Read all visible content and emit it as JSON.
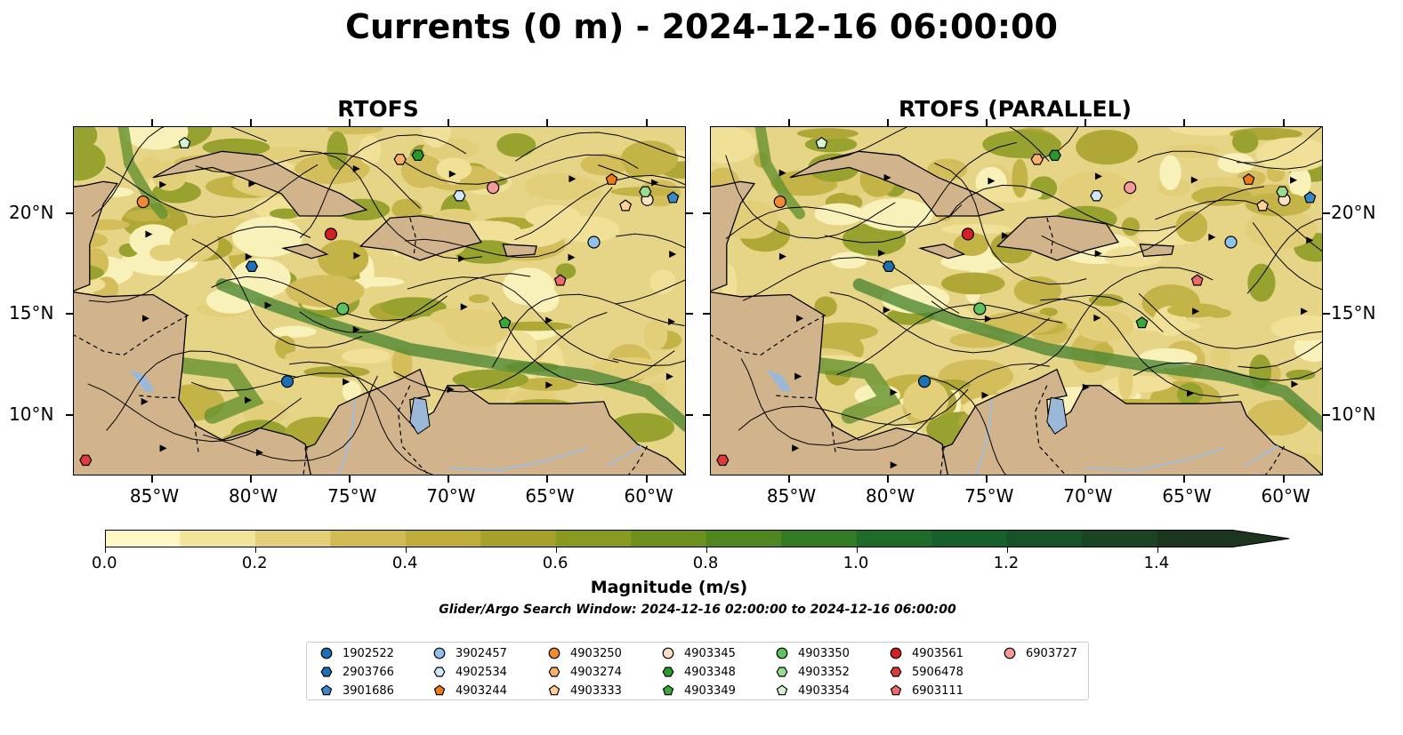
{
  "figure": {
    "title": "Currents (0 m) - 2024-12-16 06:00:00",
    "subtitle": "Glider/Argo Search Window: 2024-12-16 02:00:00 to 2024-12-16 06:00:00"
  },
  "panels": [
    {
      "title": "RTOFS"
    },
    {
      "title": "RTOFS (PARALLEL)"
    }
  ],
  "axes": {
    "x_ticks": [
      "85°W",
      "80°W",
      "75°W",
      "70°W",
      "65°W",
      "60°W"
    ],
    "x_values": [
      -85,
      -80,
      -75,
      -70,
      -65,
      -60
    ],
    "y_ticks": [
      "20°N",
      "15°N",
      "10°N"
    ],
    "y_values": [
      20,
      15,
      10
    ],
    "lon_range": [
      -89,
      -58
    ],
    "lat_range": [
      7,
      24.3
    ]
  },
  "colorbar": {
    "label": "Magnitude (m/s)",
    "ticks": [
      "0.0",
      "0.2",
      "0.4",
      "0.6",
      "0.8",
      "1.0",
      "1.2",
      "1.4"
    ],
    "tick_values": [
      0.0,
      0.2,
      0.4,
      0.6,
      0.8,
      1.0,
      1.2,
      1.4
    ],
    "range": [
      0,
      1.5
    ],
    "extend": "max",
    "colors": [
      "#fdf7c4",
      "#f3e49b",
      "#e3cf78",
      "#d1bb55",
      "#bfae3c",
      "#a6a12a",
      "#8a9a20",
      "#6c8f1d",
      "#4f861f",
      "#347b25",
      "#1e6c2a",
      "#17602c",
      "#175229",
      "#1b4424",
      "#1c351e"
    ]
  },
  "map_colors": {
    "land": "#d1b48c",
    "lake": "#9bb8d8",
    "river": "#a6bdd9",
    "ocean_base": "#e6d587"
  },
  "legend": [
    {
      "id": "1902522",
      "color": "#1f6fb4",
      "shape": "circle"
    },
    {
      "id": "2903766",
      "color": "#1f6fb4",
      "shape": "hexagon"
    },
    {
      "id": "3901686",
      "color": "#3a88c8",
      "shape": "pentagon"
    },
    {
      "id": "3902457",
      "color": "#8fc2ea",
      "shape": "circle"
    },
    {
      "id": "4902534",
      "color": "#cfe8fa",
      "shape": "hexagon"
    },
    {
      "id": "4903244",
      "color": "#f07b12",
      "shape": "pentagon"
    },
    {
      "id": "4903250",
      "color": "#f28b30",
      "shape": "circle"
    },
    {
      "id": "4903274",
      "color": "#fbb06b",
      "shape": "hexagon"
    },
    {
      "id": "4903333",
      "color": "#fdd09a",
      "shape": "pentagon"
    },
    {
      "id": "4903345",
      "color": "#fce0c6",
      "shape": "circle"
    },
    {
      "id": "4903348",
      "color": "#2a9b2a",
      "shape": "hexagon"
    },
    {
      "id": "4903349",
      "color": "#3aa83a",
      "shape": "pentagon"
    },
    {
      "id": "4903350",
      "color": "#5ec25e",
      "shape": "circle"
    },
    {
      "id": "4903352",
      "color": "#98dd8f",
      "shape": "hexagon"
    },
    {
      "id": "4903354",
      "color": "#d4f5cd",
      "shape": "pentagon"
    },
    {
      "id": "4903561",
      "color": "#d42020",
      "shape": "circle"
    },
    {
      "id": "5906478",
      "color": "#e03a3a",
      "shape": "hexagon"
    },
    {
      "id": "6903111",
      "color": "#ee6a6a",
      "shape": "pentagon"
    },
    {
      "id": "6903727",
      "color": "#f79a9a",
      "shape": "circle"
    }
  ],
  "markers": [
    {
      "panel": 0,
      "id": "1902522",
      "lon": -78.2,
      "lat": 11.7
    },
    {
      "panel": 0,
      "id": "2903766",
      "lon": -80.0,
      "lat": 17.4
    },
    {
      "panel": 0,
      "id": "3901686",
      "lon": -58.7,
      "lat": 20.8
    },
    {
      "panel": 0,
      "id": "3902457",
      "lon": -62.7,
      "lat": 18.6
    },
    {
      "panel": 0,
      "id": "4902534",
      "lon": -69.5,
      "lat": 20.9
    },
    {
      "panel": 0,
      "id": "4903244",
      "lon": -61.8,
      "lat": 21.7
    },
    {
      "panel": 0,
      "id": "4903250",
      "lon": -85.5,
      "lat": 20.6
    },
    {
      "panel": 0,
      "id": "4903274",
      "lon": -72.5,
      "lat": 22.7
    },
    {
      "panel": 0,
      "id": "4903333",
      "lon": -61.1,
      "lat": 20.4
    },
    {
      "panel": 0,
      "id": "4903345",
      "lon": -60.0,
      "lat": 20.7
    },
    {
      "panel": 0,
      "id": "4903348",
      "lon": -71.6,
      "lat": 22.9
    },
    {
      "panel": 0,
      "id": "4903349",
      "lon": -67.2,
      "lat": 14.6
    },
    {
      "panel": 0,
      "id": "4903350",
      "lon": -75.4,
      "lat": 15.3
    },
    {
      "panel": 0,
      "id": "4903352",
      "lon": -60.1,
      "lat": 21.1
    },
    {
      "panel": 0,
      "id": "4903354",
      "lon": -83.4,
      "lat": 23.5
    },
    {
      "panel": 0,
      "id": "4903561",
      "lon": -76.0,
      "lat": 19.0
    },
    {
      "panel": 0,
      "id": "5906478",
      "lon": -88.4,
      "lat": 7.8
    },
    {
      "panel": 0,
      "id": "6903111",
      "lon": -64.4,
      "lat": 16.7
    },
    {
      "panel": 0,
      "id": "6903727",
      "lon": -67.8,
      "lat": 21.3
    },
    {
      "panel": 1,
      "id": "1902522",
      "lon": -78.2,
      "lat": 11.7
    },
    {
      "panel": 1,
      "id": "2903766",
      "lon": -80.0,
      "lat": 17.4
    },
    {
      "panel": 1,
      "id": "3901686",
      "lon": -58.7,
      "lat": 20.8
    },
    {
      "panel": 1,
      "id": "3902457",
      "lon": -62.7,
      "lat": 18.6
    },
    {
      "panel": 1,
      "id": "4902534",
      "lon": -69.5,
      "lat": 20.9
    },
    {
      "panel": 1,
      "id": "4903244",
      "lon": -61.8,
      "lat": 21.7
    },
    {
      "panel": 1,
      "id": "4903250",
      "lon": -85.5,
      "lat": 20.6
    },
    {
      "panel": 1,
      "id": "4903274",
      "lon": -72.5,
      "lat": 22.7
    },
    {
      "panel": 1,
      "id": "4903333",
      "lon": -61.1,
      "lat": 20.4
    },
    {
      "panel": 1,
      "id": "4903345",
      "lon": -60.0,
      "lat": 20.7
    },
    {
      "panel": 1,
      "id": "4903348",
      "lon": -71.6,
      "lat": 22.9
    },
    {
      "panel": 1,
      "id": "4903349",
      "lon": -67.2,
      "lat": 14.6
    },
    {
      "panel": 1,
      "id": "4903350",
      "lon": -75.4,
      "lat": 15.3
    },
    {
      "panel": 1,
      "id": "4903352",
      "lon": -60.1,
      "lat": 21.1
    },
    {
      "panel": 1,
      "id": "4903354",
      "lon": -83.4,
      "lat": 23.5
    },
    {
      "panel": 1,
      "id": "4903561",
      "lon": -76.0,
      "lat": 19.0
    },
    {
      "panel": 1,
      "id": "5906478",
      "lon": -88.4,
      "lat": 7.8
    },
    {
      "panel": 1,
      "id": "6903111",
      "lon": -64.4,
      "lat": 16.7
    },
    {
      "panel": 1,
      "id": "6903727",
      "lon": -67.8,
      "lat": 21.3
    }
  ]
}
